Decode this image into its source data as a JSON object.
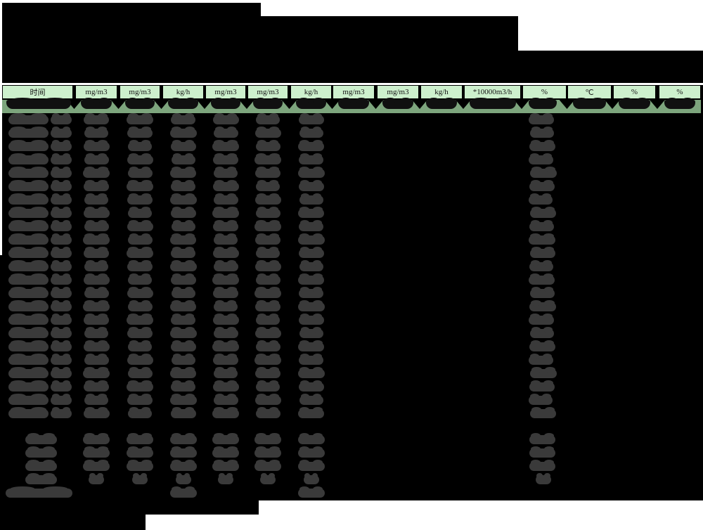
{
  "report": {
    "title_redacted": true,
    "info_block_redacted": true,
    "parameter_header_redacted": true
  },
  "table": {
    "unit_header": [
      "时间",
      "mg/m3",
      "mg/m3",
      "kg/h",
      "mg/m3",
      "mg/m3",
      "kg/h",
      "mg/m3",
      "mg/m3",
      "kg/h",
      "*10000m3/h",
      "%",
      "℃",
      "%",
      "%"
    ],
    "column_count": 15,
    "hourly_row_count": 24,
    "first_row_highlighted": true,
    "summary_row_count": 4,
    "total_row_count": 1,
    "hourly_populated_columns": [
      1,
      2,
      3,
      4,
      5,
      6,
      7,
      12
    ],
    "highlighted_row_populated_columns": [
      1,
      2,
      3,
      4,
      5,
      6,
      7,
      8,
      9,
      10,
      11,
      12,
      13,
      14,
      15
    ],
    "summary_populated_columns": [
      1,
      2,
      3,
      4,
      5,
      6,
      7,
      12
    ],
    "total_populated_columns": [
      1,
      4,
      7
    ],
    "colors": {
      "page_background": "#ffffff",
      "redaction": "#000000",
      "unit_header_background": "#cdf0cd",
      "highlighted_row_background": "#7da57d",
      "redacted_value_blob": "#3a3a3a"
    }
  }
}
